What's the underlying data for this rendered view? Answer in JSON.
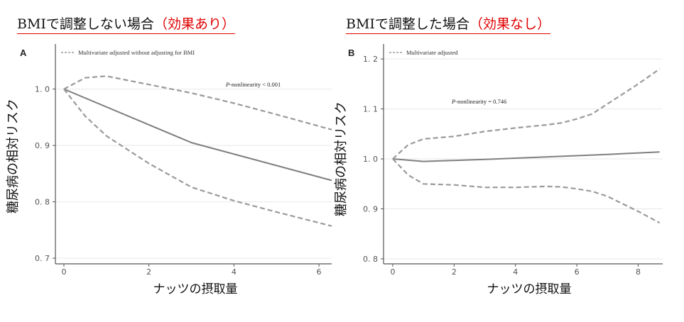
{
  "headings": [
    {
      "prefix": "BMIで調整しない場合",
      "highlight": "（効果あり）"
    },
    {
      "prefix": "BMIで調整した場合",
      "highlight": "（効果なし）"
    }
  ],
  "colors": {
    "line": "#7f7f7f",
    "ci": "#9a9a9a",
    "grid": "#e8e8e8",
    "highlight": "#e00000"
  },
  "chart_data": [
    {
      "type": "line",
      "panel": "A",
      "legend": "Multivariate adjusted without adjusting for BMI",
      "annotation": "P-nonlinearity < 0.001",
      "xlabel": "ナッツの摂取量",
      "ylabel": "糖尿病の相対リスク",
      "xlim": [
        -0.2,
        6.3
      ],
      "ylim": [
        0.69,
        1.08
      ],
      "x_ticks": [
        0,
        2,
        4,
        6
      ],
      "y_ticks": [
        0.7,
        0.8,
        0.9,
        1.0
      ],
      "y_tick_labels": [
        "0. 7",
        "0. 8",
        "0. 9",
        "1. 0"
      ],
      "grid": true,
      "series": [
        {
          "role": "estimate",
          "style": "solid",
          "x": [
            0,
            3,
            6.3
          ],
          "y": [
            1.0,
            0.905,
            0.838
          ]
        },
        {
          "role": "upper",
          "style": "dashed",
          "x": [
            0,
            0.5,
            1,
            2,
            3,
            4,
            5,
            6.3
          ],
          "y": [
            1.0,
            1.02,
            1.023,
            1.008,
            0.993,
            0.975,
            0.955,
            0.928
          ]
        },
        {
          "role": "lower",
          "style": "dashed",
          "x": [
            0,
            0.5,
            1,
            2,
            3,
            4,
            5,
            6.3
          ],
          "y": [
            1.0,
            0.952,
            0.917,
            0.868,
            0.826,
            0.802,
            0.782,
            0.757
          ]
        }
      ]
    },
    {
      "type": "line",
      "panel": "B",
      "legend": "Multivariate adjusted",
      "annotation": "P-nonlinearity = 0.746",
      "xlabel": "ナッツの摂取量",
      "ylabel": "糖尿病の相対リスク",
      "xlim": [
        -0.3,
        8.8
      ],
      "ylim": [
        0.79,
        1.23
      ],
      "x_ticks": [
        0,
        2,
        4,
        6,
        8
      ],
      "y_ticks": [
        0.8,
        0.9,
        1.0,
        1.1,
        1.2
      ],
      "y_tick_labels": [
        "0. 8",
        "0. 9",
        "1. 0",
        "1. 1",
        "1. 2"
      ],
      "grid": true,
      "series": [
        {
          "role": "estimate",
          "style": "solid",
          "x": [
            0,
            1,
            3,
            5,
            7,
            8.7
          ],
          "y": [
            1.0,
            0.995,
            0.999,
            1.004,
            1.009,
            1.014
          ]
        },
        {
          "role": "upper",
          "style": "dashed",
          "x": [
            0,
            0.5,
            1,
            2,
            3,
            4,
            5,
            5.5,
            6,
            6.5,
            7,
            7.5,
            8,
            8.7
          ],
          "y": [
            1.0,
            1.028,
            1.04,
            1.045,
            1.055,
            1.062,
            1.068,
            1.072,
            1.08,
            1.09,
            1.11,
            1.13,
            1.15,
            1.18
          ]
        },
        {
          "role": "lower",
          "style": "dashed",
          "x": [
            0,
            0.5,
            1,
            2,
            3,
            4,
            5,
            5.5,
            6,
            6.5,
            7,
            7.5,
            8,
            8.7
          ],
          "y": [
            1.0,
            0.968,
            0.95,
            0.948,
            0.943,
            0.943,
            0.945,
            0.944,
            0.94,
            0.935,
            0.925,
            0.91,
            0.895,
            0.872
          ]
        }
      ]
    }
  ]
}
